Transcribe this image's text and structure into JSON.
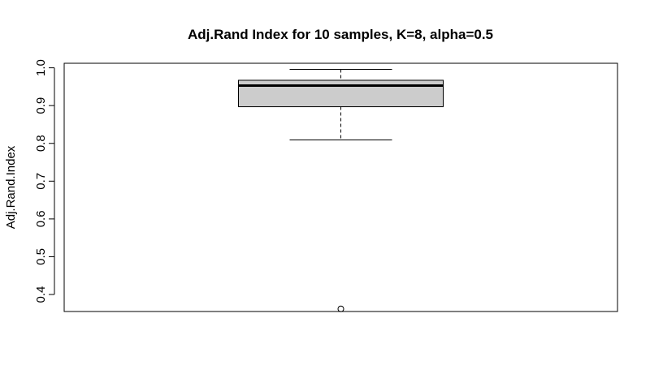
{
  "chart_data": {
    "type": "boxplot",
    "title": "Adj.Rand Index for 10 samples, K=8, alpha=0.5",
    "xlabel": "",
    "ylabel": "Adj.Rand.Index",
    "y_ticks": [
      0.4,
      0.5,
      0.6,
      0.7,
      0.8,
      0.9,
      1.0
    ],
    "y_tick_labels": [
      "0.4",
      "0.5",
      "0.6",
      "0.7",
      "0.8",
      "0.9",
      "1.0"
    ],
    "ylim": [
      0.355,
      1.012
    ],
    "box": {
      "whisker_low": 0.809,
      "q1": 0.897,
      "median": 0.953,
      "q3": 0.967,
      "whisker_high": 0.996,
      "outliers": [
        0.362
      ]
    },
    "grid": false,
    "colors": {
      "box_fill": "#cccccc",
      "line": "#000000",
      "background": "#ffffff"
    }
  }
}
